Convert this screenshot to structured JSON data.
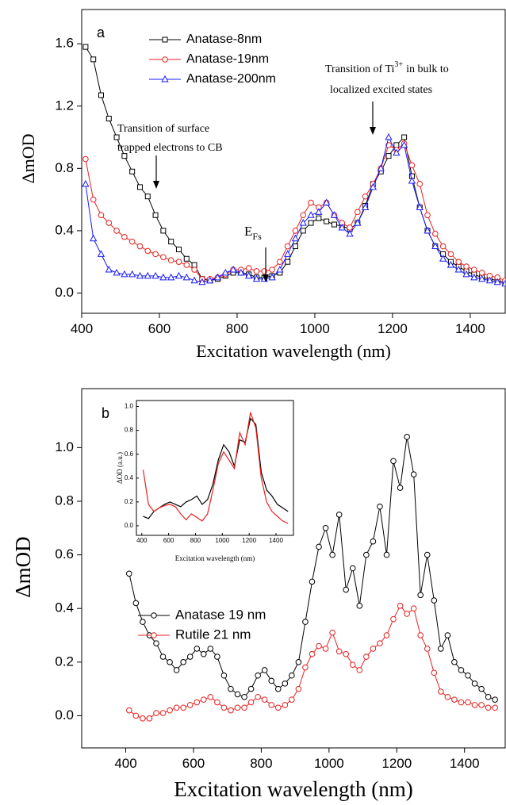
{
  "chart_data": [
    {
      "type": "line",
      "panel_label": "a",
      "x_label": "Excitation wavelength (nm)",
      "y_label": "ΔmOD",
      "annotations": [
        "Transition of surface",
        "trapped electrons to CB",
        "Transition of Ti",
        "3+",
        "in bulk  to",
        "localized excited states",
        "E",
        "Fs"
      ],
      "legend": "upper left",
      "xlim": [
        400,
        1490
      ],
      "ylim": [
        -0.13,
        1.82
      ],
      "xticks": [
        400,
        600,
        800,
        1000,
        1200,
        1400
      ],
      "yticks": [
        {
          "value": 0,
          "label": "0.0"
        },
        0.4,
        0.8,
        1.2,
        1.6
      ],
      "x": [
        410,
        430,
        450,
        470,
        490,
        510,
        530,
        550,
        570,
        590,
        610,
        630,
        650,
        670,
        690,
        710,
        730,
        750,
        770,
        790,
        810,
        830,
        850,
        870,
        890,
        910,
        930,
        950,
        970,
        990,
        1010,
        1030,
        1050,
        1070,
        1090,
        1110,
        1130,
        1150,
        1170,
        1190,
        1210,
        1230,
        1250,
        1270,
        1290,
        1310,
        1330,
        1350,
        1370,
        1390,
        1410,
        1430,
        1450,
        1470,
        1490
      ],
      "series": [
        {
          "name": "Anatase-8nm",
          "color": "#000000",
          "marker": "square",
          "values": [
            1.58,
            1.5,
            1.27,
            1.12,
            1.0,
            0.88,
            0.78,
            0.68,
            0.62,
            0.5,
            0.4,
            0.33,
            0.28,
            0.22,
            0.18,
            0.09,
            0.08,
            0.09,
            0.11,
            0.13,
            0.13,
            0.12,
            0.1,
            0.1,
            0.11,
            0.13,
            0.2,
            0.3,
            0.4,
            0.45,
            0.48,
            0.46,
            0.44,
            0.43,
            0.41,
            0.45,
            0.56,
            0.7,
            0.78,
            0.88,
            0.95,
            1.0,
            0.75,
            0.55,
            0.4,
            0.3,
            0.25,
            0.2,
            0.17,
            0.14,
            0.12,
            0.1,
            0.09,
            0.08,
            0.07
          ]
        },
        {
          "name": "Anatase-19nm",
          "color": "#e8201e",
          "marker": "circle",
          "values": [
            0.86,
            0.6,
            0.5,
            0.45,
            0.4,
            0.36,
            0.33,
            0.3,
            0.27,
            0.25,
            0.23,
            0.21,
            0.2,
            0.18,
            0.15,
            0.09,
            0.09,
            0.1,
            0.12,
            0.15,
            0.15,
            0.16,
            0.14,
            0.14,
            0.15,
            0.2,
            0.3,
            0.4,
            0.5,
            0.58,
            0.55,
            0.58,
            0.5,
            0.45,
            0.42,
            0.52,
            0.62,
            0.7,
            0.8,
            0.95,
            0.92,
            0.96,
            0.82,
            0.7,
            0.5,
            0.38,
            0.3,
            0.25,
            0.2,
            0.17,
            0.15,
            0.13,
            0.11,
            0.1,
            0.08
          ]
        },
        {
          "name": "Anatase-200nm",
          "color": "#1a1aff",
          "marker": "triangle",
          "values": [
            0.7,
            0.35,
            0.25,
            0.15,
            0.13,
            0.12,
            0.12,
            0.11,
            0.11,
            0.11,
            0.1,
            0.1,
            0.11,
            0.1,
            0.08,
            0.07,
            0.08,
            0.1,
            0.13,
            0.15,
            0.13,
            0.11,
            0.09,
            0.09,
            0.1,
            0.15,
            0.25,
            0.35,
            0.45,
            0.5,
            0.52,
            0.58,
            0.5,
            0.42,
            0.38,
            0.45,
            0.55,
            0.68,
            0.8,
            1.0,
            0.9,
            0.95,
            0.72,
            0.55,
            0.4,
            0.3,
            0.22,
            0.18,
            0.15,
            0.12,
            0.1,
            0.09,
            0.08,
            0.07,
            0.06
          ]
        }
      ]
    },
    {
      "type": "line",
      "panel_label": "b",
      "x_label": "Excitation wavelength (nm)",
      "y_label": "ΔmOD",
      "legend": "center left",
      "xlim": [
        270,
        1520
      ],
      "ylim": [
        -0.12,
        1.22
      ],
      "xticks": [
        400,
        600,
        800,
        1000,
        1200,
        1400
      ],
      "yticks": [
        {
          "value": 0,
          "label": "0.0"
        },
        0.2,
        0.4,
        0.6,
        0.8,
        {
          "value": 1,
          "label": "1.0"
        }
      ],
      "x": [
        410,
        430,
        450,
        470,
        490,
        510,
        530,
        550,
        570,
        590,
        610,
        630,
        650,
        670,
        690,
        710,
        730,
        750,
        770,
        790,
        810,
        830,
        850,
        870,
        890,
        910,
        930,
        950,
        970,
        990,
        1010,
        1030,
        1050,
        1070,
        1090,
        1110,
        1130,
        1150,
        1170,
        1190,
        1210,
        1230,
        1250,
        1270,
        1290,
        1310,
        1330,
        1350,
        1370,
        1390,
        1410,
        1430,
        1450,
        1470,
        1490
      ],
      "series": [
        {
          "name": "Anatase 19 nm",
          "color": "#000000",
          "marker": "circle",
          "values": [
            0.53,
            0.42,
            0.35,
            0.3,
            0.27,
            0.22,
            0.2,
            0.17,
            0.2,
            0.22,
            0.25,
            0.23,
            0.25,
            0.22,
            0.15,
            0.1,
            0.08,
            0.07,
            0.1,
            0.15,
            0.17,
            0.13,
            0.1,
            0.12,
            0.15,
            0.2,
            0.35,
            0.5,
            0.63,
            0.7,
            0.6,
            0.75,
            0.47,
            0.55,
            0.41,
            0.6,
            0.65,
            0.78,
            0.6,
            0.95,
            0.85,
            1.04,
            0.9,
            0.45,
            0.6,
            0.43,
            0.25,
            0.3,
            0.2,
            0.17,
            0.15,
            0.12,
            0.1,
            0.07,
            0.06
          ]
        },
        {
          "name": "Rutile  21 nm",
          "color": "#e8201e",
          "marker": "circle",
          "values": [
            0.02,
            0.0,
            -0.01,
            -0.01,
            0.01,
            0.01,
            0.02,
            0.03,
            0.03,
            0.04,
            0.05,
            0.06,
            0.07,
            0.05,
            0.03,
            0.02,
            0.03,
            0.03,
            0.05,
            0.07,
            0.06,
            0.04,
            0.03,
            0.04,
            0.06,
            0.1,
            0.18,
            0.23,
            0.26,
            0.25,
            0.31,
            0.24,
            0.23,
            0.19,
            0.17,
            0.22,
            0.25,
            0.27,
            0.3,
            0.36,
            0.41,
            0.38,
            0.4,
            0.3,
            0.25,
            0.16,
            0.09,
            0.07,
            0.06,
            0.05,
            0.05,
            0.04,
            0.04,
            0.03,
            0.03
          ]
        }
      ]
    },
    {
      "type": "line",
      "x_label": "Excitation wavelength (nm)",
      "y_label": "ΔOD (a.u.)",
      "xlim": [
        360,
        1530
      ],
      "ylim": [
        -0.08,
        1.05
      ],
      "xticks": [
        400,
        600,
        800,
        1000,
        1200,
        1400
      ],
      "yticks": [
        {
          "value": 0,
          "label": "0.0"
        },
        0.2,
        0.4,
        0.6,
        0.8,
        {
          "value": 1,
          "label": "1.0"
        }
      ],
      "x": [
        410,
        450,
        490,
        530,
        570,
        610,
        650,
        690,
        730,
        770,
        810,
        850,
        890,
        930,
        970,
        1010,
        1050,
        1090,
        1130,
        1170,
        1210,
        1250,
        1290,
        1330,
        1370,
        1410,
        1450,
        1490
      ],
      "series": [
        {
          "color": "#000000",
          "marker": "none",
          "values": [
            0.08,
            0.06,
            0.12,
            0.15,
            0.18,
            0.2,
            0.18,
            0.16,
            0.2,
            0.22,
            0.25,
            0.18,
            0.22,
            0.35,
            0.55,
            0.68,
            0.62,
            0.5,
            0.72,
            0.7,
            0.9,
            0.85,
            0.45,
            0.3,
            0.25,
            0.18,
            0.15,
            0.12
          ]
        },
        {
          "color": "#e8201e",
          "marker": "none",
          "values": [
            0.47,
            0.18,
            0.12,
            0.15,
            0.17,
            0.18,
            0.16,
            0.1,
            0.05,
            0.1,
            0.07,
            0.04,
            0.1,
            0.3,
            0.52,
            0.62,
            0.55,
            0.48,
            0.78,
            0.68,
            0.95,
            0.82,
            0.4,
            0.2,
            0.12,
            0.08,
            0.04,
            0.02
          ]
        }
      ]
    }
  ]
}
